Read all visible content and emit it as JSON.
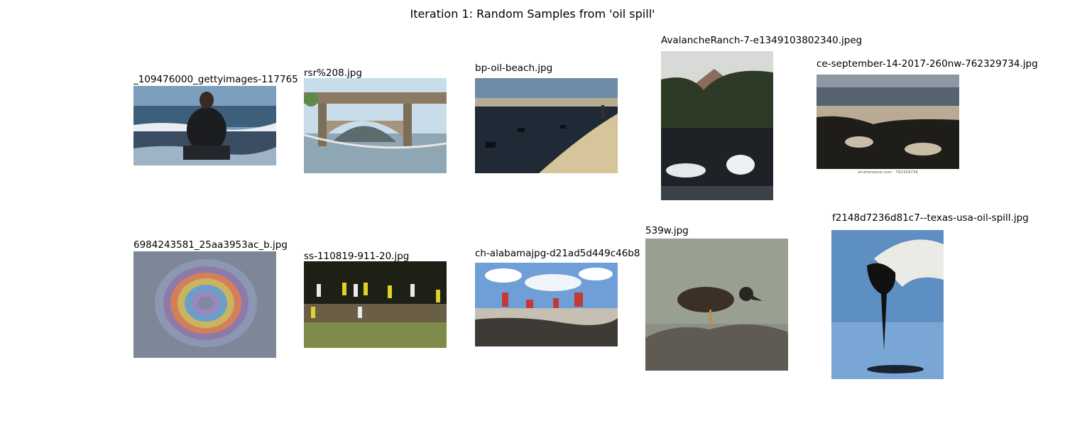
{
  "title": "Iteration 1: Random Samples from 'oil spill'",
  "samples": [
    {
      "filename": "_109476000_gettyimages-117765",
      "subject": "boy wading in oil-stained surf"
    },
    {
      "filename": "rsr%208.jpg",
      "subject": "river under an arched bridge with containment boom"
    },
    {
      "filename": "bp-oil-beach.jpg",
      "subject": "oiled beach with debris"
    },
    {
      "filename": "AvalancheRanch-7-e1349103802340.jpeg",
      "subject": "dark pond below a hill with smoke"
    },
    {
      "filename": "ce-september-14-2017-260nw-762329734.jpg",
      "subject": "oil-covered shoreline",
      "watermark": "shutterstock.com · 762329734"
    },
    {
      "filename": "6984243581_25aa3953ac_b.jpg",
      "subject": "rainbow oil sheen on pavement"
    },
    {
      "filename": "ss-110819-911-20.jpg",
      "subject": "workers in yellow protective suits on a field"
    },
    {
      "filename": "ch-alabamajpg-d21ad5d449c46b8",
      "subject": "crew cleaning an oiled beach"
    },
    {
      "filename": "539w.jpg",
      "subject": "oiled duck standing on a rock"
    },
    {
      "filename": "f2148d7236d81c7--texas-usa-oil-spill.jpg",
      "subject": "gloved hand holding dripping oil over water"
    }
  ]
}
